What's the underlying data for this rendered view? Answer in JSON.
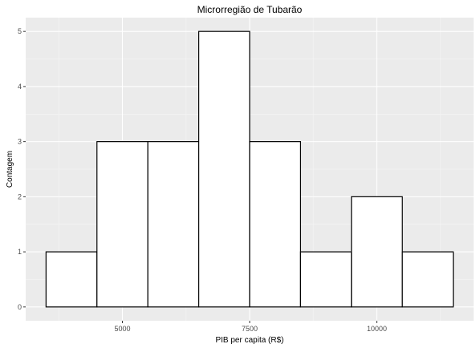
{
  "chart_data": {
    "type": "bar",
    "subtype": "histogram",
    "title": "Microrregião de  Tubarão",
    "xlabel": "PIB per capita (R$)",
    "ylabel": "Contagem",
    "bins": [
      {
        "x0": 3500,
        "x1": 4500,
        "count": 1
      },
      {
        "x0": 4500,
        "x1": 5500,
        "count": 3
      },
      {
        "x0": 5500,
        "x1": 6500,
        "count": 3
      },
      {
        "x0": 6500,
        "x1": 7500,
        "count": 5
      },
      {
        "x0": 7500,
        "x1": 8500,
        "count": 3
      },
      {
        "x0": 8500,
        "x1": 9500,
        "count": 1
      },
      {
        "x0": 9500,
        "x1": 10500,
        "count": 2
      },
      {
        "x0": 10500,
        "x1": 11500,
        "count": 1
      }
    ],
    "xlim": [
      3100,
      11900
    ],
    "ylim": [
      -0.25,
      5.25
    ],
    "x_ticks": [
      {
        "value": 5000,
        "label": "5000"
      },
      {
        "value": 7500,
        "label": "7500"
      },
      {
        "value": 10000,
        "label": "10000"
      }
    ],
    "y_ticks": [
      {
        "value": 0,
        "label": "0"
      },
      {
        "value": 1,
        "label": "1"
      },
      {
        "value": 2,
        "label": "2"
      },
      {
        "value": 3,
        "label": "3"
      },
      {
        "value": 4,
        "label": "4"
      },
      {
        "value": 5,
        "label": "5"
      }
    ],
    "grid": true,
    "colors": {
      "panel_background": "#ebebeb",
      "major_grid": "#ffffff",
      "minor_grid": "#f5f5f5",
      "bar_fill": "#ffffff",
      "bar_outline": "#000000",
      "tick_label": "#4d4d4d",
      "tick_mark": "#333333",
      "text": "#000000"
    }
  }
}
